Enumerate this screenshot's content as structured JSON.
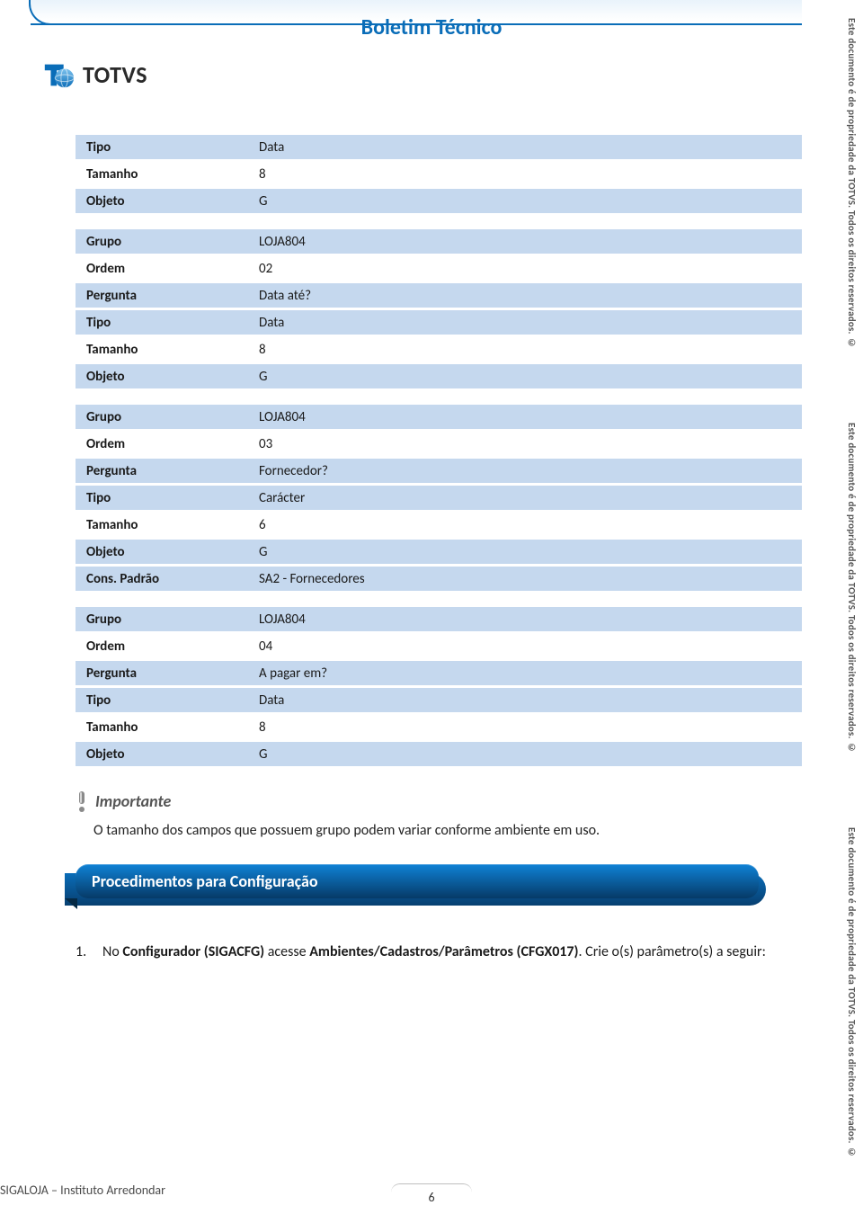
{
  "colors": {
    "brand_blue": "#0a6db8",
    "row_shade": "#c5d8ee",
    "text": "#1a1a1a",
    "banner_grad_top": "#0f82d6",
    "banner_grad_bottom": "#063a67"
  },
  "header": {
    "title": "Boletim Técnico",
    "logo_text": "TOTVS"
  },
  "groups": [
    {
      "rows": [
        {
          "label": "Tipo",
          "value": "Data",
          "shade": true
        },
        {
          "label": "Tamanho",
          "value": "8",
          "shade": false
        },
        {
          "label": "Objeto",
          "value": "G",
          "shade": true
        }
      ]
    },
    {
      "rows": [
        {
          "label": "Grupo",
          "value": "LOJA804",
          "shade": true
        },
        {
          "label": "Ordem",
          "value": "02",
          "shade": false
        },
        {
          "label": "Pergunta",
          "value": "Data até?",
          "shade": true
        },
        {
          "label": "Tipo",
          "value": "Data",
          "shade": true
        },
        {
          "label": "Tamanho",
          "value": "8",
          "shade": false
        },
        {
          "label": "Objeto",
          "value": "G",
          "shade": true
        }
      ]
    },
    {
      "rows": [
        {
          "label": "Grupo",
          "value": "LOJA804",
          "shade": true
        },
        {
          "label": "Ordem",
          "value": "03",
          "shade": false
        },
        {
          "label": "Pergunta",
          "value": "Fornecedor?",
          "shade": true
        },
        {
          "label": "Tipo",
          "value": "Carácter",
          "shade": true
        },
        {
          "label": "Tamanho",
          "value": "6",
          "shade": false
        },
        {
          "label": "Objeto",
          "value": "G",
          "shade": true
        },
        {
          "label": "Cons. Padrão",
          "value": "SA2 - Fornecedores",
          "shade": true
        }
      ]
    },
    {
      "rows": [
        {
          "label": "Grupo",
          "value": "LOJA804",
          "shade": true
        },
        {
          "label": "Ordem",
          "value": "04",
          "shade": false
        },
        {
          "label": "Pergunta",
          "value": "A pagar em?",
          "shade": true
        },
        {
          "label": "Tipo",
          "value": "Data",
          "shade": true
        },
        {
          "label": "Tamanho",
          "value": "8",
          "shade": false
        },
        {
          "label": "Objeto",
          "value": "G",
          "shade": true
        }
      ]
    }
  ],
  "importante": {
    "label": "Importante",
    "note": "O tamanho dos campos que possuem grupo podem variar conforme ambiente em uso."
  },
  "section": {
    "title": "Procedimentos para Configuração"
  },
  "steps": {
    "num1": "1.",
    "text1_a": "No ",
    "text1_b": "Configurador (SIGACFG)",
    "text1_c": " acesse ",
    "text1_d": "Ambientes/Cadastros/Parâmetros (CFGX017)",
    "text1_e": ". Crie o(s) parâmetro(s) a seguir:"
  },
  "footer": {
    "left": "SIGALOJA – Instituto Arredondar",
    "page": "6"
  },
  "watermark": "Este documento é de propriedade da TOTVS. Todos os direitos reservados. ©"
}
